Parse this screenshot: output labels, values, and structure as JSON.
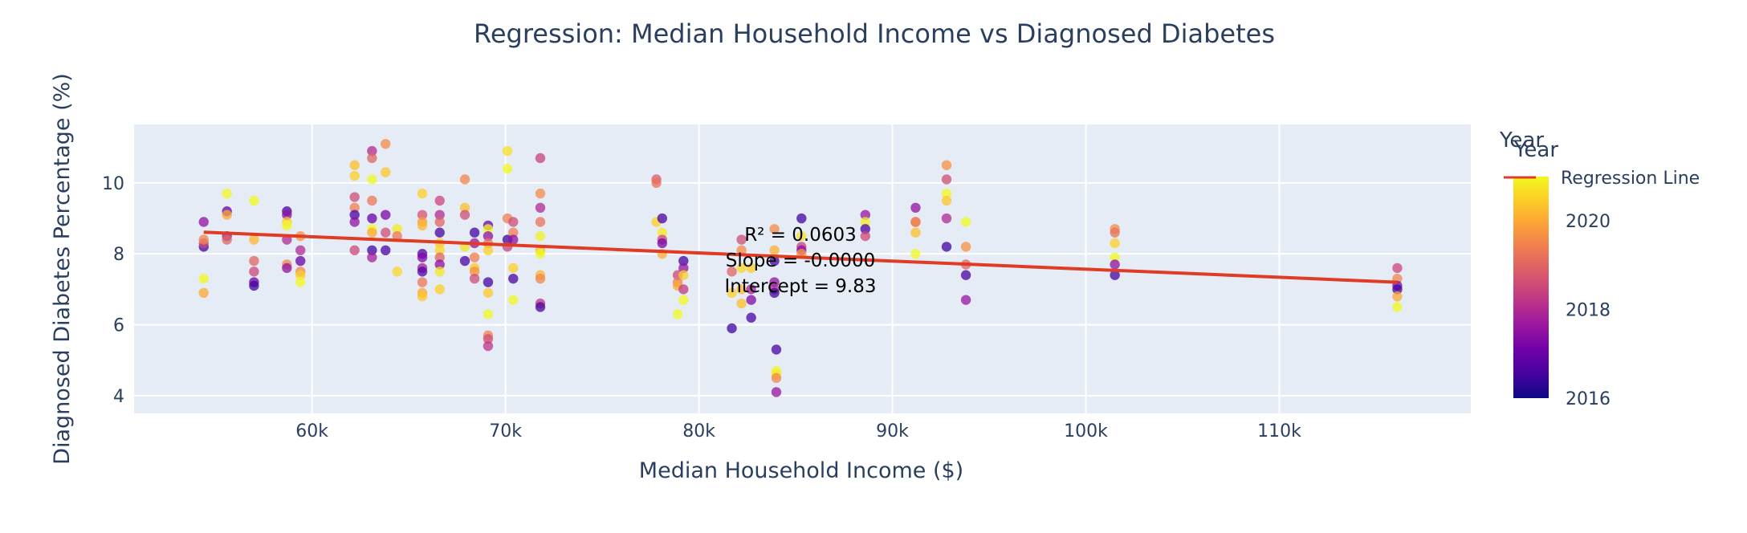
{
  "chart_data": {
    "type": "scatter",
    "title": "Regression: Median Household Income vs Diagnosed Diabetes",
    "xlabel": "Median Household Income ($)",
    "ylabel": "Diagnosed Diabetes Percentage (%)",
    "xlim": [
      50800,
      119900
    ],
    "ylim": [
      3.5,
      11.65
    ],
    "xticks": [
      60000,
      70000,
      80000,
      90000,
      100000,
      110000
    ],
    "xtick_labels": [
      "60k",
      "70k",
      "80k",
      "90k",
      "100k",
      "110k"
    ],
    "yticks": [
      4,
      6,
      8,
      10
    ],
    "ytick_labels": [
      "4",
      "6",
      "8",
      "10"
    ],
    "grid": true,
    "colorbar": {
      "title": "Year",
      "range": [
        2016,
        2021
      ],
      "ticks": [
        2016,
        2018,
        2020
      ],
      "tick_labels": [
        "2016",
        "2018",
        "2020"
      ],
      "colorscale": [
        "#0d0887",
        "#46039f",
        "#7201a8",
        "#9c179e",
        "#bd3786",
        "#d8576b",
        "#ed7953",
        "#fb9f3a",
        "#fdca26",
        "#f0f921"
      ]
    },
    "legend": {
      "position": "top-right",
      "entries": [
        "Regression Line"
      ],
      "title": "Year"
    },
    "regression": {
      "name": "Regression Line",
      "x": [
        54400,
        116100
      ],
      "y": [
        8.61,
        7.2
      ],
      "color": "#e03b24"
    },
    "annotations": [
      "R² = 0.0603",
      "Slope = -0.0000",
      "Intercept = 9.83"
    ],
    "series": [
      {
        "name": "points",
        "points": [
          [
            54400,
            8.9,
            2017.5
          ],
          [
            54400,
            8.2,
            2016.5
          ],
          [
            54400,
            8.3,
            2018.5
          ],
          [
            54400,
            8.4,
            2019.5
          ],
          [
            54400,
            6.9,
            2020
          ],
          [
            54400,
            7.3,
            2021
          ],
          [
            55600,
            9.7,
            2021
          ],
          [
            55600,
            9.2,
            2017
          ],
          [
            55600,
            9.1,
            2020
          ],
          [
            55600,
            8.5,
            2017.5
          ],
          [
            55600,
            8.4,
            2019
          ],
          [
            57000,
            9.5,
            2021
          ],
          [
            57000,
            8.4,
            2020.2
          ],
          [
            57000,
            7.8,
            2019
          ],
          [
            57000,
            7.5,
            2018.5
          ],
          [
            57000,
            7.2,
            2017
          ],
          [
            57000,
            7.1,
            2016.5
          ],
          [
            58700,
            9.2,
            2016.5
          ],
          [
            58700,
            9.1,
            2017.5
          ],
          [
            58700,
            8.9,
            2020.5
          ],
          [
            58700,
            8.8,
            2021
          ],
          [
            58700,
            8.4,
            2018
          ],
          [
            58700,
            7.7,
            2019.5
          ],
          [
            58700,
            7.6,
            2017.5
          ],
          [
            59400,
            8.5,
            2019.7
          ],
          [
            59400,
            8.1,
            2018
          ],
          [
            59400,
            7.8,
            2017
          ],
          [
            59400,
            7.5,
            2019.5
          ],
          [
            59400,
            7.4,
            2020.5
          ],
          [
            59400,
            7.2,
            2021
          ],
          [
            62200,
            10.5,
            2020.3
          ],
          [
            62200,
            10.2,
            2020.5
          ],
          [
            62200,
            9.6,
            2018.6
          ],
          [
            62200,
            9.3,
            2019.4
          ],
          [
            62200,
            9.1,
            2016.6
          ],
          [
            62200,
            8.9,
            2017.5
          ],
          [
            62200,
            8.1,
            2018.5
          ],
          [
            63100,
            10.9,
            2018
          ],
          [
            63100,
            10.7,
            2019
          ],
          [
            63100,
            10.1,
            2021
          ],
          [
            63100,
            9.5,
            2019.3
          ],
          [
            63100,
            9.0,
            2017
          ],
          [
            63100,
            8.7,
            2021
          ],
          [
            63100,
            8.6,
            2020
          ],
          [
            63100,
            8.1,
            2016.5
          ],
          [
            63100,
            7.9,
            2017.8
          ],
          [
            63800,
            11.1,
            2019.6
          ],
          [
            63800,
            10.3,
            2020.4
          ],
          [
            63800,
            9.1,
            2017.2
          ],
          [
            63800,
            8.6,
            2018.6
          ],
          [
            63800,
            8.1,
            2016.6
          ],
          [
            64400,
            8.7,
            2020.8
          ],
          [
            64400,
            8.5,
            2019.3
          ],
          [
            64400,
            7.5,
            2020.6
          ],
          [
            65700,
            9.7,
            2020.5
          ],
          [
            65700,
            9.1,
            2018.7
          ],
          [
            65700,
            8.9,
            2019.8
          ],
          [
            65700,
            8.8,
            2020.2
          ],
          [
            65700,
            8.0,
            2016.7
          ],
          [
            65700,
            7.9,
            2017.3
          ],
          [
            65700,
            7.6,
            2017.8
          ],
          [
            65700,
            7.5,
            2016.7
          ],
          [
            65700,
            7.2,
            2019.3
          ],
          [
            65700,
            6.9,
            2020
          ],
          [
            65700,
            6.8,
            2020.4
          ],
          [
            66600,
            9.5,
            2018.5
          ],
          [
            66600,
            9.1,
            2018
          ],
          [
            66600,
            8.9,
            2019
          ],
          [
            66600,
            8.6,
            2016.6
          ],
          [
            66600,
            8.3,
            2020.4
          ],
          [
            66600,
            8.1,
            2020.6
          ],
          [
            66600,
            7.9,
            2019
          ],
          [
            66600,
            7.7,
            2017.5
          ],
          [
            66600,
            7.5,
            2020.8
          ],
          [
            66600,
            7.0,
            2020.5
          ],
          [
            67900,
            10.1,
            2019.5
          ],
          [
            67900,
            9.3,
            2020.3
          ],
          [
            67900,
            9.1,
            2018.6
          ],
          [
            67900,
            8.2,
            2020.7
          ],
          [
            67900,
            7.8,
            2016.6
          ],
          [
            68400,
            8.6,
            2016.5
          ],
          [
            68400,
            8.3,
            2017.6
          ],
          [
            68400,
            7.9,
            2019.4
          ],
          [
            68400,
            7.6,
            2020.4
          ],
          [
            68400,
            7.5,
            2019.7
          ],
          [
            68400,
            7.3,
            2018.6
          ],
          [
            69100,
            8.8,
            2017
          ],
          [
            69100,
            8.7,
            2021
          ],
          [
            69100,
            8.5,
            2017.5
          ],
          [
            69100,
            8.3,
            2019.3
          ],
          [
            69100,
            8.1,
            2020.5
          ],
          [
            69100,
            7.2,
            2016.5
          ],
          [
            69100,
            6.9,
            2020.4
          ],
          [
            69100,
            6.3,
            2021
          ],
          [
            69100,
            5.7,
            2019.5
          ],
          [
            69100,
            5.6,
            2018.6
          ],
          [
            69100,
            5.4,
            2018.2
          ],
          [
            70100,
            10.9,
            2020.7
          ],
          [
            70100,
            10.4,
            2021
          ],
          [
            70100,
            9.0,
            2019.4
          ],
          [
            70100,
            8.4,
            2016.4
          ],
          [
            70100,
            8.2,
            2018.4
          ],
          [
            70400,
            8.9,
            2018.6
          ],
          [
            70400,
            8.6,
            2019.4
          ],
          [
            70400,
            8.4,
            2017.5
          ],
          [
            70400,
            7.6,
            2020.5
          ],
          [
            70400,
            7.3,
            2016.6
          ],
          [
            70400,
            6.7,
            2021
          ],
          [
            71800,
            10.7,
            2018.4
          ],
          [
            71800,
            9.7,
            2019.6
          ],
          [
            71800,
            9.3,
            2018
          ],
          [
            71800,
            8.9,
            2019.2
          ],
          [
            71800,
            8.5,
            2020.9
          ],
          [
            71800,
            8.1,
            2020.2
          ],
          [
            71800,
            8.0,
            2021
          ],
          [
            71800,
            7.4,
            2020.2
          ],
          [
            71800,
            7.3,
            2019.5
          ],
          [
            71800,
            6.6,
            2018.2
          ],
          [
            71800,
            6.5,
            2016.6
          ],
          [
            77800,
            10.1,
            2018.8
          ],
          [
            77800,
            10.0,
            2019.2
          ],
          [
            77800,
            8.9,
            2020.5
          ],
          [
            78100,
            9.0,
            2016.6
          ],
          [
            78100,
            8.6,
            2020.8
          ],
          [
            78100,
            8.4,
            2018.5
          ],
          [
            78100,
            8.3,
            2017.2
          ],
          [
            78100,
            8.0,
            2020.1
          ],
          [
            78900,
            7.4,
            2018.5
          ],
          [
            78900,
            7.2,
            2019.4
          ],
          [
            78900,
            7.1,
            2020
          ],
          [
            78900,
            6.3,
            2021
          ],
          [
            79200,
            7.8,
            2016.5
          ],
          [
            79200,
            7.6,
            2017.6
          ],
          [
            79200,
            7.4,
            2020.5
          ],
          [
            79200,
            7.0,
            2018.3
          ],
          [
            79200,
            6.7,
            2021
          ],
          [
            81700,
            7.5,
            2019
          ],
          [
            81700,
            6.9,
            2020.5
          ],
          [
            81700,
            5.9,
            2016.5
          ],
          [
            82200,
            8.4,
            2018.6
          ],
          [
            82200,
            8.1,
            2019.6
          ],
          [
            82200,
            7.6,
            2020.6
          ],
          [
            82200,
            7.0,
            2020.2
          ],
          [
            82200,
            6.6,
            2020.3
          ],
          [
            82700,
            7.6,
            2020.5
          ],
          [
            82700,
            7.0,
            2017.8
          ],
          [
            82700,
            6.7,
            2017.3
          ],
          [
            82700,
            6.2,
            2016.6
          ],
          [
            83900,
            8.7,
            2019.6
          ],
          [
            83900,
            8.1,
            2020.1
          ],
          [
            83900,
            7.8,
            2016.5
          ],
          [
            83900,
            7.2,
            2017.5
          ],
          [
            83900,
            7.0,
            2018
          ],
          [
            83900,
            6.9,
            2016.5
          ],
          [
            84000,
            5.3,
            2016.6
          ],
          [
            84000,
            4.7,
            2021
          ],
          [
            84000,
            4.6,
            2020.8
          ],
          [
            84000,
            4.5,
            2019.5
          ],
          [
            84000,
            4.1,
            2017.6
          ],
          [
            85300,
            9.0,
            2016.5
          ],
          [
            85300,
            8.5,
            2020.7
          ],
          [
            85300,
            8.2,
            2018.4
          ],
          [
            85300,
            8.1,
            2017.4
          ],
          [
            85300,
            8.0,
            2019.8
          ],
          [
            88600,
            9.1,
            2017.6
          ],
          [
            88600,
            8.9,
            2020.9
          ],
          [
            88600,
            8.7,
            2016.6
          ],
          [
            88600,
            8.5,
            2018.5
          ],
          [
            91200,
            9.3,
            2017.5
          ],
          [
            91200,
            8.9,
            2019
          ],
          [
            91200,
            8.9,
            2019.5
          ],
          [
            91200,
            8.6,
            2020.3
          ],
          [
            91200,
            8.0,
            2021
          ],
          [
            92800,
            10.5,
            2019.7
          ],
          [
            92800,
            10.1,
            2018.6
          ],
          [
            92800,
            9.7,
            2021
          ],
          [
            92800,
            9.5,
            2020.4
          ],
          [
            92800,
            9.0,
            2018
          ],
          [
            92800,
            8.2,
            2016.5
          ],
          [
            93800,
            8.9,
            2021
          ],
          [
            93800,
            8.2,
            2019.7
          ],
          [
            93800,
            7.7,
            2019
          ],
          [
            93800,
            7.4,
            2016.6
          ],
          [
            93800,
            6.7,
            2017.6
          ],
          [
            101500,
            8.7,
            2019.6
          ],
          [
            101500,
            8.6,
            2019.2
          ],
          [
            101500,
            8.3,
            2020.5
          ],
          [
            101500,
            7.9,
            2021
          ],
          [
            101500,
            7.7,
            2017.5
          ],
          [
            101500,
            7.4,
            2016.5
          ],
          [
            116100,
            7.6,
            2018.5
          ],
          [
            116100,
            7.3,
            2019.5
          ],
          [
            116100,
            7.1,
            2017.3
          ],
          [
            116100,
            7.0,
            2016.5
          ],
          [
            116100,
            6.8,
            2020
          ],
          [
            116100,
            6.5,
            2021
          ]
        ]
      }
    ]
  }
}
